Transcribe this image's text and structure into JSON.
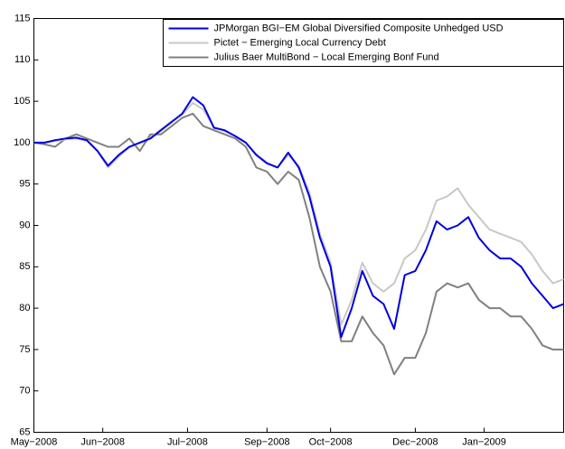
{
  "chart_data": {
    "type": "line",
    "x": [
      0,
      2,
      4,
      6,
      8,
      10,
      12,
      14,
      16,
      18,
      20,
      22,
      24,
      26,
      28,
      30,
      32,
      34,
      36,
      38,
      40,
      42,
      44,
      46,
      48,
      50,
      52,
      54,
      56,
      58,
      60,
      62,
      64,
      66,
      68,
      70,
      72,
      74,
      76,
      78,
      80,
      82,
      84,
      86,
      88,
      90,
      92,
      94,
      96,
      98,
      100
    ],
    "xlim": [
      0,
      100
    ],
    "xticks": [
      {
        "value": 0,
        "label": "May−2008"
      },
      {
        "value": 13,
        "label": "Jun−2008"
      },
      {
        "value": 29,
        "label": "Jul−2008"
      },
      {
        "value": 44,
        "label": "Sep−2008"
      },
      {
        "value": 56,
        "label": "Oct−2008"
      },
      {
        "value": 72,
        "label": "Dec−2008"
      },
      {
        "value": 85,
        "label": "Jan−2009"
      }
    ],
    "ylim": [
      65,
      115
    ],
    "yticks": [
      65,
      70,
      75,
      80,
      85,
      90,
      95,
      100,
      105,
      110,
      115
    ],
    "legend": "top-right",
    "series": [
      {
        "name": "JPMorgan BGI−EM Global Diversified Composite Unhedged USD",
        "color": "#0000dd",
        "values": [
          100,
          100,
          100.3,
          100.5,
          100.6,
          100.3,
          99,
          97.2,
          98.5,
          99.5,
          100,
          100.5,
          101.5,
          102.5,
          103.5,
          105.5,
          104.5,
          101.8,
          101.5,
          100.8,
          100,
          98.5,
          97.5,
          97,
          98.8,
          97,
          93.5,
          88.5,
          85,
          76.5,
          80,
          84.5,
          81.5,
          80.5,
          77.5,
          84,
          84.5,
          87,
          90.5,
          89.5,
          90,
          91,
          88.5,
          87,
          86,
          86,
          85,
          83,
          81.5,
          80,
          80.5
        ]
      },
      {
        "name": "Pictet − Emerging Local Currency Debt",
        "color": "#c8c8c8",
        "values": [
          100,
          100,
          100.2,
          100.4,
          100.5,
          100.2,
          99,
          97,
          98.3,
          99.4,
          100,
          100.6,
          101.6,
          102.6,
          103.4,
          104.8,
          104,
          101.8,
          101.4,
          100.8,
          100,
          98.6,
          97.6,
          97,
          98.5,
          97.2,
          94,
          89,
          85.5,
          78,
          81,
          85.5,
          83,
          82,
          83,
          86,
          87,
          89.5,
          93,
          93.5,
          94.5,
          92.5,
          91,
          89.5,
          89,
          88.5,
          88,
          86.5,
          84.5,
          83,
          83.5
        ]
      },
      {
        "name": "Julius Baer MultiBond − Local Emerging Bonf Fund",
        "color": "#808080",
        "values": [
          100,
          99.8,
          99.5,
          100.5,
          101,
          100.5,
          100,
          99.5,
          99.5,
          100.5,
          99,
          101,
          101,
          102,
          103,
          103.5,
          102,
          101.5,
          101,
          100.5,
          99.5,
          97,
          96.5,
          95,
          96.5,
          95.5,
          91,
          85,
          82,
          76,
          76,
          79,
          77,
          75.5,
          72,
          74,
          74,
          77,
          82,
          83,
          82.5,
          83,
          81,
          80,
          80,
          79,
          79,
          77.5,
          75.5,
          75,
          75
        ]
      }
    ]
  }
}
